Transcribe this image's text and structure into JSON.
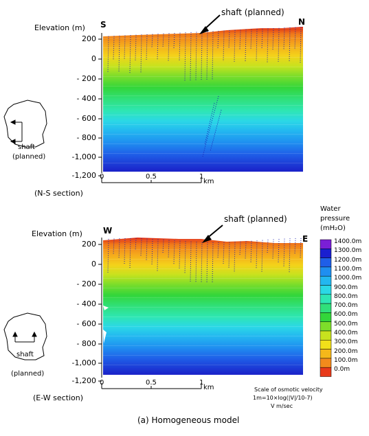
{
  "top_panel": {
    "y_axis_label": "Elevation (m)",
    "left_dir": "S",
    "right_dir": "N",
    "shaft_label": "shaft (planned)",
    "y_ticks": [
      "200",
      "0",
      "- 200",
      "- 400",
      "- 600",
      "- 800",
      "-1,000",
      "-1,200"
    ],
    "x_ticks": [
      "0",
      "0.5",
      "1"
    ],
    "x_unit": "km",
    "section_label": "(N-S section)",
    "inset_shaft": "shaft",
    "inset_planned": "(planned)"
  },
  "bottom_panel": {
    "y_axis_label": "Elevation (m)",
    "left_dir": "W",
    "right_dir": "E",
    "shaft_label": "shaft (planned)",
    "y_ticks": [
      "200",
      "0",
      "- 200",
      "- 400",
      "- 600",
      "- 800",
      "-1,000",
      "-1,200"
    ],
    "x_ticks": [
      "0",
      "0.5",
      "1"
    ],
    "x_unit": "km",
    "section_label": "(E-W section)",
    "inset_shaft": "shaft",
    "inset_planned": "(planned)"
  },
  "legend": {
    "title_line1": "Water",
    "title_line2": "pressure",
    "title_line3": "(mH₂O)",
    "levels": [
      "1400.0m",
      "1300.0m",
      "1200.0m",
      "1100.0m",
      "1000.0m",
      "900.0m",
      "800.0m",
      "700.0m",
      "600.0m",
      "500.0m",
      "400.0m",
      "300.0m",
      "200.0m",
      "100.0m",
      "0.0m"
    ],
    "colors": [
      "#7a1fd6",
      "#1a1fd0",
      "#1f5fe8",
      "#1f8ff0",
      "#23b7f0",
      "#2bd8e6",
      "#2ee6b4",
      "#30e07a",
      "#33d63a",
      "#7ddd2a",
      "#c8e21e",
      "#f2e01a",
      "#f5b81a",
      "#f28a1c",
      "#e83a1a"
    ]
  },
  "velocity_note": {
    "line1": "Scale of osmotic velocity",
    "line2": "1m=10×log(|V|/10-7)",
    "line3": "V m/sec"
  },
  "caption": "(a) Homogeneous model"
}
